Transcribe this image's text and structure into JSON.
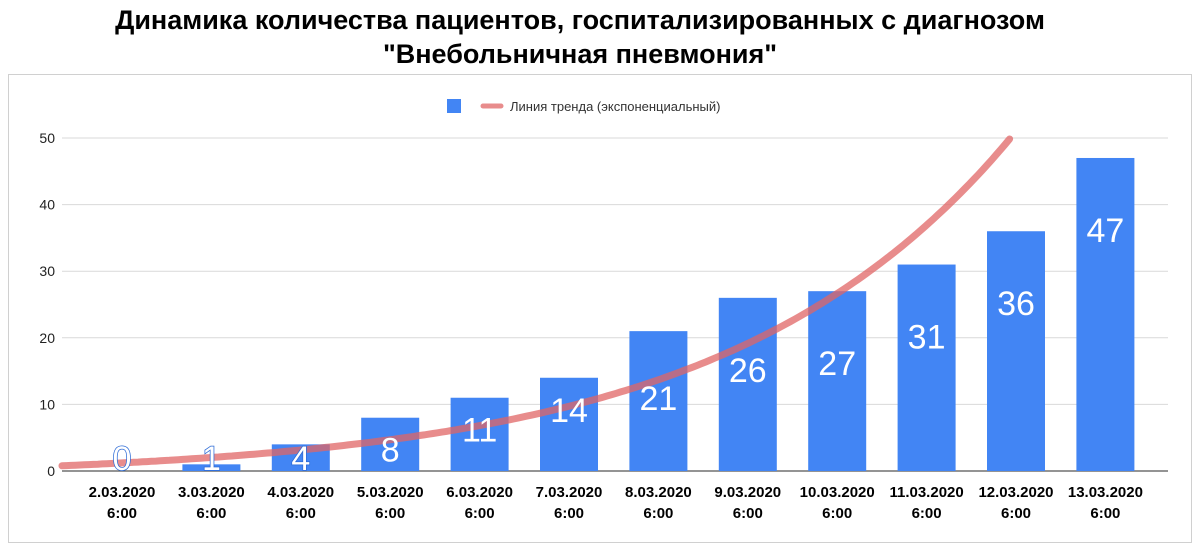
{
  "title_lines": [
    "Динамика количества пациентов, госпитализированных с диагнозом",
    "\"Внебольничная пневмония\""
  ],
  "legend": {
    "trend_label": "Линия тренда (экспоненциальный)"
  },
  "chart_data": {
    "type": "bar",
    "title": "Динамика количества пациентов, госпитализированных с диагнозом \"Внебольничная пневмония\"",
    "categories": [
      [
        "2.03.2020",
        "6:00"
      ],
      [
        "3.03.2020",
        "6:00"
      ],
      [
        "4.03.2020",
        "6:00"
      ],
      [
        "5.03.2020",
        "6:00"
      ],
      [
        "6.03.2020",
        "6:00"
      ],
      [
        "7.03.2020",
        "6:00"
      ],
      [
        "8.03.2020",
        "6:00"
      ],
      [
        "9.03.2020",
        "6:00"
      ],
      [
        "10.03.2020",
        "6:00"
      ],
      [
        "11.03.2020",
        "6:00"
      ],
      [
        "12.03.2020",
        "6:00"
      ],
      [
        "13.03.2020",
        "6:00"
      ]
    ],
    "values": [
      0,
      1,
      4,
      8,
      11,
      14,
      21,
      26,
      27,
      31,
      36,
      47
    ],
    "trendline": {
      "type": "exponential",
      "label": "Линия тренда (экспоненциальный)"
    },
    "ylim": [
      0,
      50
    ],
    "yticks": [
      0,
      10,
      20,
      30,
      40,
      50
    ],
    "xlabel": "",
    "ylabel": "",
    "grid": true,
    "legend_position": "top",
    "colors": {
      "bar": "#4285f4",
      "trend": "#e06666",
      "grid": "#d9d9d9",
      "label": "#ffffff",
      "label_outline": "#2d6bd6"
    }
  }
}
